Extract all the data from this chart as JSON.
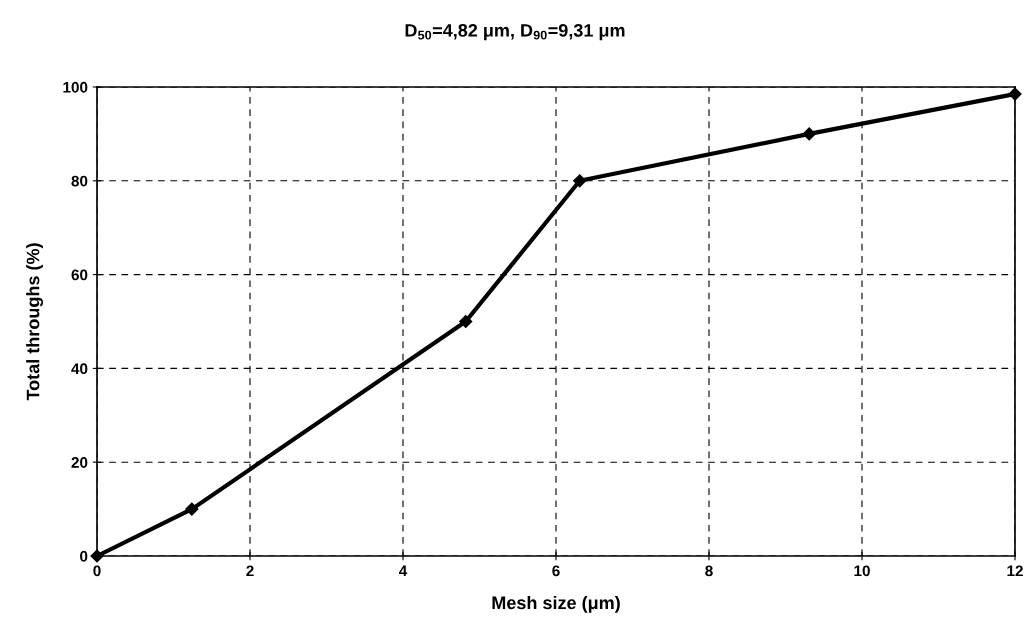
{
  "chart_data": {
    "type": "line",
    "title": "D$_{50}$=4,82 μm, D$_{90}$=9,31 μm",
    "xlabel": "Mesh size (μm)",
    "ylabel": "Total throughs (%)",
    "x": [
      0,
      1.24,
      4.82,
      6.31,
      9.31,
      12
    ],
    "series": [
      {
        "color": "#000000",
        "values": [
          0,
          10,
          50,
          80,
          90,
          98.5
        ]
      }
    ],
    "xlim": [
      0,
      12
    ],
    "xticks": [
      0,
      2,
      4,
      6,
      8,
      10,
      12
    ],
    "ylim": [
      0,
      100
    ],
    "yticks": [
      0,
      20,
      40,
      60,
      80,
      100
    ],
    "grid": true,
    "marker": "diamond",
    "line_style": "solid"
  }
}
